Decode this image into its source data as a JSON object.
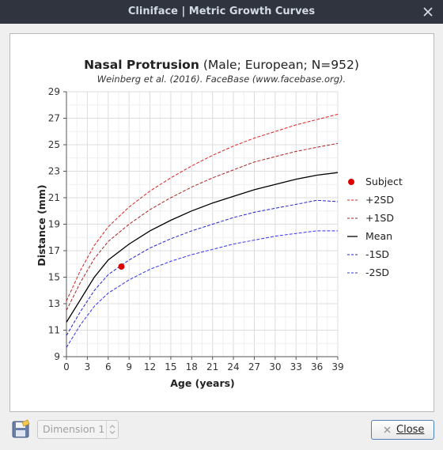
{
  "window": {
    "title": "Cliniface | Metric Growth Curves"
  },
  "toolbar": {
    "dimension_value": "Dimension 1",
    "close_label": "Close"
  },
  "chart_data": {
    "type": "line",
    "title_bold": "Nasal Protrusion",
    "title_rest": "(Male; European; N=952)",
    "subtitle": "Weinberg et al. (2016). FaceBase (www.facebase.org).",
    "xlabel": "Age (years)",
    "ylabel": "Distance (mm)",
    "xlim": [
      0,
      39
    ],
    "ylim": [
      9,
      29
    ],
    "xticks": [
      "0",
      "3",
      "6",
      "9",
      "12",
      "15",
      "18",
      "21",
      "24",
      "27",
      "30",
      "33",
      "36",
      "39"
    ],
    "yticks": [
      "9",
      "11",
      "13",
      "15",
      "17",
      "19",
      "21",
      "23",
      "25",
      "27",
      "29"
    ],
    "grid": true,
    "legend_position": "right",
    "x": [
      0,
      2,
      4,
      6,
      9,
      12,
      15,
      18,
      21,
      24,
      27,
      30,
      33,
      36,
      39
    ],
    "series": [
      {
        "name": "+2SD",
        "color": "#dd2222",
        "dash": true,
        "values": [
          13.2,
          15.5,
          17.4,
          18.8,
          20.3,
          21.5,
          22.5,
          23.4,
          24.2,
          24.9,
          25.5,
          26.0,
          26.5,
          26.9,
          27.3
        ]
      },
      {
        "name": "+1SD",
        "color": "#aa2222",
        "dash": true,
        "values": [
          12.5,
          14.6,
          16.4,
          17.7,
          19.0,
          20.1,
          21.0,
          21.8,
          22.5,
          23.1,
          23.7,
          24.1,
          24.5,
          24.8,
          25.1
        ]
      },
      {
        "name": "Mean",
        "color": "#000000",
        "dash": false,
        "values": [
          11.6,
          13.3,
          15.0,
          16.3,
          17.5,
          18.5,
          19.3,
          20.0,
          20.6,
          21.1,
          21.6,
          22.0,
          22.4,
          22.7,
          22.9
        ]
      },
      {
        "name": "-1SD",
        "color": "#2222cc",
        "dash": true,
        "values": [
          10.6,
          12.4,
          14.0,
          15.2,
          16.3,
          17.2,
          17.9,
          18.5,
          19.0,
          19.5,
          19.9,
          20.2,
          20.5,
          20.8,
          20.7
        ]
      },
      {
        "name": "-2SD",
        "color": "#3333ee",
        "dash": true,
        "values": [
          9.7,
          11.4,
          12.8,
          13.8,
          14.8,
          15.6,
          16.2,
          16.7,
          17.1,
          17.5,
          17.8,
          18.1,
          18.3,
          18.5,
          18.5
        ]
      }
    ],
    "subject": {
      "name": "Subject",
      "x": 7.9,
      "y": 15.8,
      "color": "#dd0000"
    },
    "legend": [
      "Subject",
      "+2SD",
      "+1SD",
      "Mean",
      "-1SD",
      "-2SD"
    ]
  }
}
